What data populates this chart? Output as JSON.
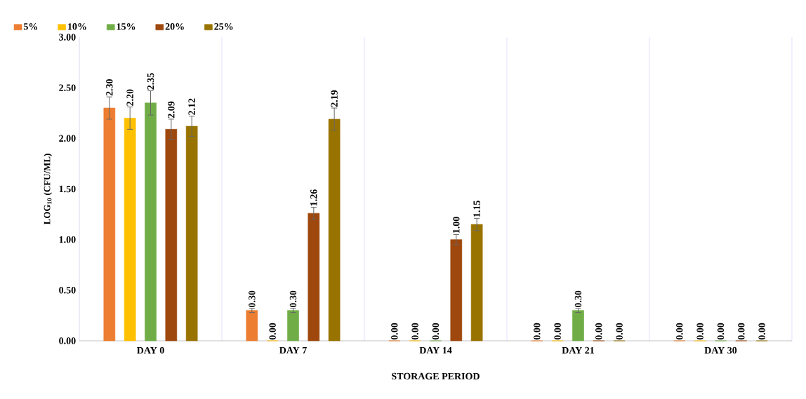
{
  "chart_data": {
    "type": "bar",
    "xlabel": "STORAGE PERIOD",
    "ylabel": "LOG$_{10}$ (CFU/ML)",
    "categories": [
      "DAY 0",
      "DAY 7",
      "DAY 14",
      "DAY 21",
      "DAY 30"
    ],
    "ylim": [
      0,
      3
    ],
    "yticks": [
      {
        "value": 0,
        "label": "0.00"
      },
      {
        "value": 0.5,
        "label": "0.50"
      },
      {
        "value": 1,
        "label": "1.00"
      },
      {
        "value": 1.5,
        "label": "1.50"
      },
      {
        "value": 2,
        "label": "2.00"
      },
      {
        "value": 2.5,
        "label": "2.50"
      },
      {
        "value": 3,
        "label": "3.00"
      }
    ],
    "grid": "x",
    "legend": "top left",
    "series": [
      {
        "name": "5%",
        "color": "#ed7d31",
        "values": [
          2.3,
          0.3,
          0.0,
          0.0,
          0.0
        ],
        "errors": [
          0.11,
          0.02,
          null,
          null,
          null
        ],
        "value_labels": [
          "2.30",
          "0.30",
          "0.00",
          "0.00",
          "0.00"
        ]
      },
      {
        "name": "10%",
        "color": "#ffc000",
        "values": [
          2.2,
          0.0,
          0.0,
          0.0,
          0.0
        ],
        "errors": [
          0.11,
          null,
          null,
          null,
          null
        ],
        "value_labels": [
          "2.20",
          "0.00",
          "0.00",
          "0.00",
          "0.00"
        ]
      },
      {
        "name": "15%",
        "color": "#70ad47",
        "values": [
          2.35,
          0.3,
          0.0,
          0.3,
          0.0
        ],
        "errors": [
          0.12,
          0.02,
          null,
          0.02,
          null
        ],
        "value_labels": [
          "2.35",
          "0.30",
          "0.00",
          "0.30",
          "0.00"
        ]
      },
      {
        "name": "20%",
        "color": "#9e480e",
        "values": [
          2.09,
          1.26,
          1.0,
          0.0,
          0.0
        ],
        "errors": [
          0.1,
          0.06,
          0.05,
          null,
          null
        ],
        "value_labels": [
          "2.09",
          "1.26",
          "1.00",
          "0.00",
          "0.00"
        ]
      },
      {
        "name": "25%",
        "color": "#997300",
        "values": [
          2.12,
          2.19,
          1.15,
          0.0,
          0.0
        ],
        "errors": [
          0.1,
          0.11,
          0.06,
          null,
          null
        ],
        "value_labels": [
          "2.12",
          "2.19",
          "1.15",
          "0.00",
          "0.00"
        ]
      }
    ]
  }
}
